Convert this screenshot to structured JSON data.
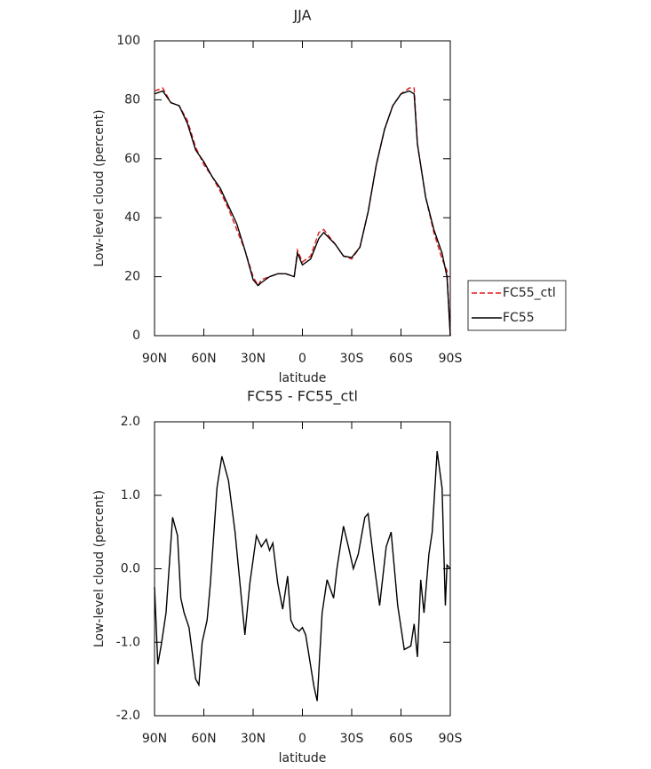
{
  "chart_data": [
    {
      "type": "line",
      "title": "JJA",
      "x_label": "latitude",
      "y_label": "Low-level cloud (percent)",
      "x": [
        90,
        85,
        80,
        75,
        70,
        65,
        60,
        55,
        50,
        45,
        40,
        35,
        30,
        27,
        25,
        20,
        15,
        10,
        5,
        3,
        0,
        -5,
        -10,
        -13,
        -20,
        -25,
        -30,
        -35,
        -40,
        -45,
        -50,
        -55,
        -60,
        -65,
        -68,
        -70,
        -75,
        -80,
        -85,
        -88,
        -90
      ],
      "series": [
        {
          "name": "FC55_ctl",
          "color": "#e41a1c",
          "dash": true,
          "values": [
            83,
            84,
            79,
            78,
            73,
            64,
            58,
            54,
            49,
            43,
            36,
            29,
            20,
            17,
            19,
            20,
            21,
            21,
            20,
            29,
            25,
            27,
            35,
            36,
            31,
            27,
            26,
            30,
            42,
            58,
            70,
            78,
            82,
            84,
            84,
            65,
            47,
            35,
            26,
            22,
            0
          ]
        },
        {
          "name": "FC55",
          "color": "#000000",
          "dash": false,
          "values": [
            82,
            83,
            79,
            78,
            72,
            63,
            59,
            54,
            50,
            44,
            38,
            29,
            19,
            17,
            18,
            20,
            21,
            21,
            20,
            28,
            24,
            26,
            33,
            35,
            31,
            27,
            26.5,
            30,
            42,
            58,
            70,
            78,
            82,
            83,
            82,
            65,
            47,
            36,
            28,
            20,
            0
          ]
        }
      ],
      "xlim": [
        90,
        -90
      ],
      "xticks": [
        {
          "value": 90,
          "label": "90N"
        },
        {
          "value": 60,
          "label": "60N"
        },
        {
          "value": 30,
          "label": "30N"
        },
        0,
        {
          "value": -30,
          "label": "30S"
        },
        {
          "value": -60,
          "label": "60S"
        },
        {
          "value": -90,
          "label": "90S"
        }
      ],
      "ylim": [
        0,
        100
      ],
      "yticks": [
        0,
        20,
        40,
        60,
        80,
        100
      ],
      "legend": "right"
    },
    {
      "type": "line",
      "title": "FC55 - FC55_ctl",
      "x_label": "latitude",
      "y_label": "Low-level cloud (percent)",
      "x": [
        90,
        88,
        86,
        83,
        79,
        76,
        74,
        72,
        69,
        65,
        63,
        61,
        58,
        56,
        52,
        49,
        45,
        41,
        38,
        35,
        32,
        28,
        25,
        22,
        20,
        18,
        15,
        12,
        9,
        7,
        5,
        2,
        0,
        -2,
        -7,
        -9,
        -12,
        -15,
        -19,
        -21,
        -25,
        -28,
        -31,
        -34,
        -38,
        -40,
        -44,
        -47,
        -51,
        -54,
        -58,
        -62,
        -66,
        -68,
        -70,
        -72,
        -74,
        -77,
        -79,
        -82,
        -85,
        -87,
        -88,
        -90
      ],
      "series": [
        {
          "color": "#000000",
          "values": [
            -0.25,
            -1.3,
            -1.05,
            -0.6,
            0.7,
            0.45,
            -0.4,
            -0.6,
            -0.8,
            -1.5,
            -1.58,
            -1.0,
            -0.7,
            -0.2,
            1.1,
            1.53,
            1.2,
            0.5,
            -0.2,
            -0.9,
            -0.2,
            0.45,
            0.3,
            0.4,
            0.25,
            0.35,
            -0.2,
            -0.55,
            -0.1,
            -0.7,
            -0.8,
            -0.85,
            -0.8,
            -0.9,
            -1.6,
            -1.8,
            -0.6,
            -0.15,
            -0.4,
            0.0,
            0.58,
            0.3,
            0.0,
            0.2,
            0.7,
            0.75,
            0.0,
            -0.5,
            0.3,
            0.5,
            -0.5,
            -1.1,
            -1.05,
            -0.75,
            -1.2,
            -0.15,
            -0.6,
            0.2,
            0.5,
            1.6,
            1.1,
            -0.5,
            0.05,
            0.0
          ]
        }
      ],
      "xlim": [
        90,
        -90
      ],
      "xticks": [
        {
          "value": 90,
          "label": "90N"
        },
        {
          "value": 60,
          "label": "60N"
        },
        {
          "value": 30,
          "label": "30N"
        },
        0,
        {
          "value": -30,
          "label": "30S"
        },
        {
          "value": -60,
          "label": "60S"
        },
        {
          "value": -90,
          "label": "90S"
        }
      ],
      "ylim": [
        -2,
        2
      ],
      "yticks": [
        {
          "value": -2,
          "label": "-2.0"
        },
        {
          "value": -1,
          "label": "-1.0"
        },
        {
          "value": 0,
          "label": "0.0"
        },
        {
          "value": 1,
          "label": "1.0"
        },
        {
          "value": 2,
          "label": "2.0"
        }
      ]
    }
  ]
}
